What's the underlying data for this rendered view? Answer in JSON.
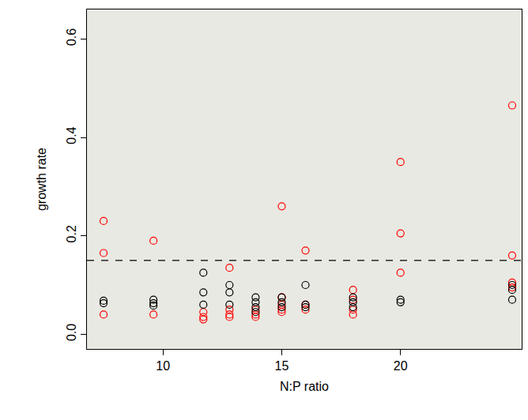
{
  "chart_data": {
    "type": "scatter",
    "x_label": "N:P ratio",
    "y_label": "growth rate",
    "xlim": [
      6.8,
      25.1
    ],
    "xticks": [
      10,
      15,
      20
    ],
    "ylim": [
      -0.03,
      0.66
    ],
    "yticks": [
      {
        "value": 0,
        "label": "0.0"
      },
      0.2,
      0.4,
      0.6
    ],
    "grid": false,
    "series": [
      {
        "color": "#ff0000",
        "marker": "circle-open",
        "x": [
          7.5,
          7.5,
          7.5,
          9.6,
          9.6,
          11.7,
          11.7,
          11.7,
          12.8,
          12.8,
          12.8,
          12.8,
          13.9,
          13.9,
          13.9,
          15,
          15,
          15,
          15,
          15,
          16,
          16,
          16,
          18,
          18,
          18,
          18,
          20,
          20,
          20,
          24.7,
          24.7,
          24.7,
          24.7
        ],
        "values": [
          0.23,
          0.165,
          0.04,
          0.19,
          0.04,
          0.045,
          0.035,
          0.03,
          0.135,
          0.05,
          0.04,
          0.035,
          0.05,
          0.04,
          0.035,
          0.26,
          0.075,
          0.06,
          0.05,
          0.045,
          0.17,
          0.06,
          0.05,
          0.09,
          0.07,
          0.05,
          0.04,
          0.35,
          0.205,
          0.125,
          0.465,
          0.16,
          0.105,
          0.095
        ]
      },
      {
        "color": "#000000",
        "marker": "circle-open",
        "x": [
          7.5,
          7.5,
          9.6,
          9.6,
          9.6,
          11.7,
          11.7,
          11.7,
          12.8,
          12.8,
          12.8,
          13.9,
          13.9,
          13.9,
          13.9,
          15,
          15,
          15,
          16,
          16,
          16,
          18,
          18,
          18,
          20,
          20,
          24.7,
          24.7,
          24.7
        ],
        "values": [
          0.068,
          0.063,
          0.07,
          0.063,
          0.058,
          0.125,
          0.085,
          0.06,
          0.1,
          0.085,
          0.06,
          0.075,
          0.065,
          0.055,
          0.045,
          0.075,
          0.065,
          0.055,
          0.1,
          0.06,
          0.055,
          0.075,
          0.065,
          0.055,
          0.07,
          0.065,
          0.1,
          0.09,
          0.07
        ]
      },
      {
        "type": "hline",
        "color": "#000000",
        "line_style": "dashed",
        "values": [
          0.15
        ]
      }
    ]
  }
}
